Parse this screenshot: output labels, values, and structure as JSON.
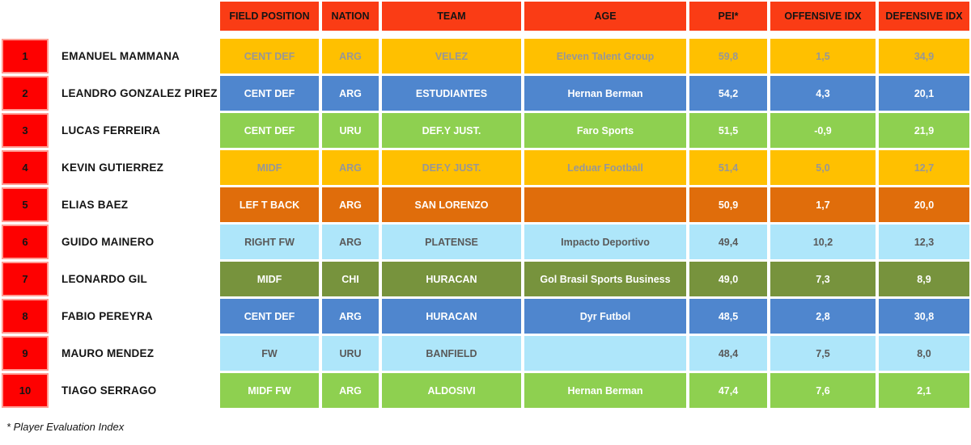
{
  "header": {
    "columns": [
      "FIELD POSITION",
      "NATION",
      "TEAM",
      "AGE",
      "PEI*",
      "OFFENSIVE IDX",
      "DEFENSIVE IDX"
    ]
  },
  "rows": [
    {
      "rank": "1",
      "name": "EMANUEL MAMMANA",
      "position": "CENT DEF",
      "nation": "ARG",
      "team": "VELEZ",
      "age": "Eleven Talent Group",
      "pei": "59,8",
      "offensive_idx": "1,5",
      "defensive_idx": "34,9",
      "theme": "gold"
    },
    {
      "rank": "2",
      "name": "LEANDRO GONZALEZ PIREZ",
      "position": "CENT DEF",
      "nation": "ARG",
      "team": "ESTUDIANTES",
      "age": "Hernan Berman",
      "pei": "54,2",
      "offensive_idx": "4,3",
      "defensive_idx": "20,1",
      "theme": "blue"
    },
    {
      "rank": "3",
      "name": "LUCAS FERREIRA",
      "position": "CENT DEF",
      "nation": "URU",
      "team": "DEF.Y JUST.",
      "age": "Faro Sports",
      "pei": "51,5",
      "offensive_idx": "-0,9",
      "defensive_idx": "21,9",
      "theme": "green"
    },
    {
      "rank": "4",
      "name": "KEVIN GUTIERREZ",
      "position": "MIDF",
      "nation": "ARG",
      "team": "DEF.Y JUST.",
      "age": "Leduar Football",
      "pei": "51,4",
      "offensive_idx": "5,0",
      "defensive_idx": "12,7",
      "theme": "gold"
    },
    {
      "rank": "5",
      "name": "ELIAS BAEZ",
      "position": "LEF T BACK",
      "nation": "ARG",
      "team": "SAN LORENZO",
      "age": "",
      "pei": "50,9",
      "offensive_idx": "1,7",
      "defensive_idx": "20,0",
      "theme": "orange"
    },
    {
      "rank": "6",
      "name": "GUIDO MAINERO",
      "position": "RIGHT FW",
      "nation": "ARG",
      "team": "PLATENSE",
      "age": "Impacto Deportivo",
      "pei": "49,4",
      "offensive_idx": "10,2",
      "defensive_idx": "12,3",
      "theme": "lightblue"
    },
    {
      "rank": "7",
      "name": "LEONARDO GIL",
      "position": "MIDF",
      "nation": "CHI",
      "team": "HURACAN",
      "age": "Gol Brasil Sports Business",
      "pei": "49,0",
      "offensive_idx": "7,3",
      "defensive_idx": "8,9",
      "theme": "olive"
    },
    {
      "rank": "8",
      "name": "FABIO PEREYRA",
      "position": "CENT DEF",
      "nation": "ARG",
      "team": "HURACAN",
      "age": "Dyr Futbol",
      "pei": "48,5",
      "offensive_idx": "2,8",
      "defensive_idx": "30,8",
      "theme": "blue"
    },
    {
      "rank": "9",
      "name": "MAURO MENDEZ",
      "position": "FW",
      "nation": "URU",
      "team": "BANFIELD",
      "age": "",
      "pei": "48,4",
      "offensive_idx": "7,5",
      "defensive_idx": "8,0",
      "theme": "lightblue"
    },
    {
      "rank": "10",
      "name": "TIAGO SERRAGO",
      "position": "MIDF FW",
      "nation": "ARG",
      "team": "ALDOSIVI",
      "age": "Hernan Berman",
      "pei": "47,4",
      "offensive_idx": "7,6",
      "defensive_idx": "2,1",
      "theme": "green"
    }
  ],
  "footnote": "* Player Evaluation Index",
  "colors": {
    "header_bg": "#FA3C15",
    "header_text": "#141414",
    "rank_bg": "#FE0101",
    "rank_border": "#FF9C93",
    "themes": {
      "gold": {
        "bg": "#FFC000",
        "text": "#979797"
      },
      "blue": {
        "bg": "#4F86CE",
        "text": "#FFFFFF"
      },
      "green": {
        "bg": "#8ED050",
        "text": "#FFFFFF"
      },
      "orange": {
        "bg": "#E06D0B",
        "text": "#FFFFFF"
      },
      "lightblue": {
        "bg": "#AEE6FA",
        "text": "#595959"
      },
      "olive": {
        "bg": "#77933D",
        "text": "#FFFFFF"
      }
    }
  },
  "chart_data": {
    "type": "table",
    "title": "",
    "columns": [
      "",
      "",
      "FIELD POSITION",
      "NATION",
      "TEAM",
      "AGE",
      "PEI*",
      "OFFENSIVE IDX",
      "DEFENSIVE IDX"
    ],
    "rows": [
      [
        "1",
        "EMANUEL MAMMANA",
        "CENT DEF",
        "ARG",
        "VELEZ",
        "Eleven Talent Group",
        "59,8",
        "1,5",
        "34,9"
      ],
      [
        "2",
        "LEANDRO GONZALEZ PIREZ",
        "CENT DEF",
        "ARG",
        "ESTUDIANTES",
        "Hernan Berman",
        "54,2",
        "4,3",
        "20,1"
      ],
      [
        "3",
        "LUCAS FERREIRA",
        "CENT DEF",
        "URU",
        "DEF.Y JUST.",
        "Faro Sports",
        "51,5",
        "-0,9",
        "21,9"
      ],
      [
        "4",
        "KEVIN GUTIERREZ",
        "MIDF",
        "ARG",
        "DEF.Y JUST.",
        "Leduar Football",
        "51,4",
        "5,0",
        "12,7"
      ],
      [
        "5",
        "ELIAS BAEZ",
        "LEF T BACK",
        "ARG",
        "SAN LORENZO",
        "",
        "50,9",
        "1,7",
        "20,0"
      ],
      [
        "6",
        "GUIDO MAINERO",
        "RIGHT FW",
        "ARG",
        "PLATENSE",
        "Impacto Deportivo",
        "49,4",
        "10,2",
        "12,3"
      ],
      [
        "7",
        "LEONARDO GIL",
        "MIDF",
        "CHI",
        "HURACAN",
        "Gol Brasil Sports Business",
        "49,0",
        "7,3",
        "8,9"
      ],
      [
        "8",
        "FABIO PEREYRA",
        "CENT DEF",
        "ARG",
        "HURACAN",
        "Dyr Futbol",
        "48,5",
        "2,8",
        "30,8"
      ],
      [
        "9",
        "MAURO MENDEZ",
        "FW",
        "URU",
        "BANFIELD",
        "",
        "48,4",
        "7,5",
        "8,0"
      ],
      [
        "10",
        "TIAGO SERRAGO",
        "MIDF FW",
        "ARG",
        "ALDOSIVI",
        "Hernan Berman",
        "47,4",
        "7,6",
        "2,1"
      ]
    ],
    "footnote": "* Player Evaluation Index"
  }
}
